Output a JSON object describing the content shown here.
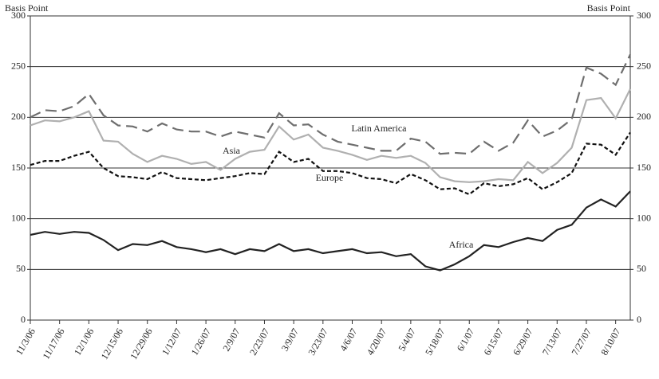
{
  "chart_data": {
    "type": "line",
    "y_label": "Basis Point",
    "y2_label": "Basis Point",
    "categories": [
      "11/3/06",
      null,
      "11/17/06",
      null,
      "12/1/06",
      null,
      "12/15/06",
      null,
      "12/29/06",
      null,
      "1/12/07",
      null,
      "1/26/07",
      null,
      "2/9/07",
      null,
      "2/23/07",
      null,
      "3/9/07",
      null,
      "3/23/07",
      null,
      "4/6/07",
      null,
      "4/20/07",
      null,
      "5/4/07",
      null,
      "5/18/07",
      null,
      "6/1/07",
      null,
      "6/15/07",
      null,
      "6/29/07",
      null,
      "7/13/07",
      null,
      "7/27/07",
      null,
      "8/10/07",
      null
    ],
    "series": [
      {
        "name": "Latin America",
        "color": "#6e6e6e",
        "dash": "long",
        "values": [
          200,
          207,
          206,
          211,
          223,
          202,
          192,
          191,
          186,
          194,
          188,
          186,
          186,
          181,
          186,
          183,
          180,
          204,
          192,
          193,
          183,
          176,
          173,
          170,
          167,
          167,
          179,
          176,
          164,
          165,
          164,
          176,
          167,
          175,
          197,
          181,
          187,
          198,
          249,
          243,
          232,
          262
        ]
      },
      {
        "name": "Asia",
        "color": "#b0b0b0",
        "dash": "solid",
        "values": [
          192,
          197,
          196,
          200,
          206,
          177,
          176,
          164,
          156,
          162,
          159,
          154,
          156,
          148,
          159,
          166,
          168,
          191,
          178,
          183,
          170,
          167,
          163,
          158,
          162,
          160,
          162,
          155,
          141,
          137,
          136,
          137,
          139,
          138,
          156,
          145,
          155,
          170,
          217,
          219,
          199,
          228
        ]
      },
      {
        "name": "Europe",
        "color": "#111111",
        "dash": "short",
        "values": [
          153,
          157,
          157,
          162,
          166,
          150,
          142,
          141,
          139,
          146,
          140,
          139,
          138,
          140,
          142,
          145,
          144,
          166,
          156,
          159,
          147,
          147,
          145,
          140,
          139,
          135,
          144,
          138,
          129,
          130,
          124,
          135,
          132,
          134,
          140,
          129,
          136,
          145,
          174,
          173,
          163,
          185
        ]
      },
      {
        "name": "Africa",
        "color": "#222222",
        "dash": "solid",
        "values": [
          84,
          87,
          85,
          87,
          86,
          79,
          69,
          75,
          74,
          78,
          72,
          70,
          67,
          70,
          65,
          70,
          68,
          75,
          68,
          70,
          66,
          68,
          70,
          66,
          67,
          63,
          65,
          53,
          49,
          55,
          63,
          74,
          72,
          77,
          81,
          78,
          89,
          94,
          111,
          119,
          112,
          127
        ]
      }
    ],
    "ylim": [
      0,
      300
    ],
    "yticks": [
      0,
      50,
      100,
      150,
      200,
      250,
      300
    ],
    "y2lim": [
      0,
      300
    ],
    "y2ticks": [
      0,
      50,
      100,
      150,
      200,
      250,
      300
    ],
    "grid": true
  }
}
